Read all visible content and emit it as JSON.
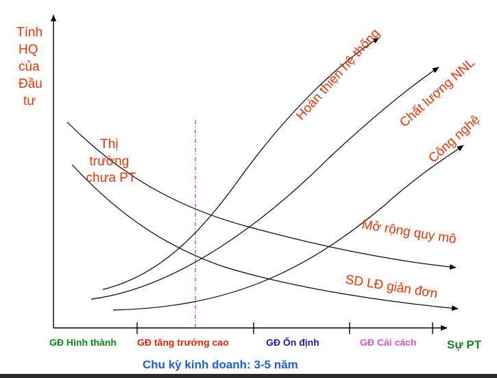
{
  "y_axis_label": [
    "Tính",
    "HQ",
    "của",
    "Đầu",
    "tư"
  ],
  "x_axis_label": "Sự PT",
  "market_note": [
    "Thị",
    "trường",
    "chưa PT"
  ],
  "curves": {
    "system": "Hoàn thiện hệ thống",
    "hr_quality": "Chất lượng NNL",
    "technology": "Công nghệ",
    "scale": "Mở rộng quy mô",
    "simple_labor": "SD LĐ giản đơn"
  },
  "stages": [
    {
      "label": "GĐ Hình thành",
      "color": "#0a8a0a"
    },
    {
      "label": "GĐ tăng trưởng cao",
      "color": "#ee2200"
    },
    {
      "label": "GĐ Ổn định",
      "color": "#1a1aaa"
    },
    {
      "label": "GĐ Cải cách",
      "color": "#dd55cc"
    }
  ],
  "cycle_caption": "Chu kỳ kinh doanh: 3-5 năm",
  "colors": {
    "text_red": "#ee3300",
    "axis_x_label": "#0a8a0a",
    "caption": "#1a5fdd",
    "divider": "#cc33cc"
  }
}
